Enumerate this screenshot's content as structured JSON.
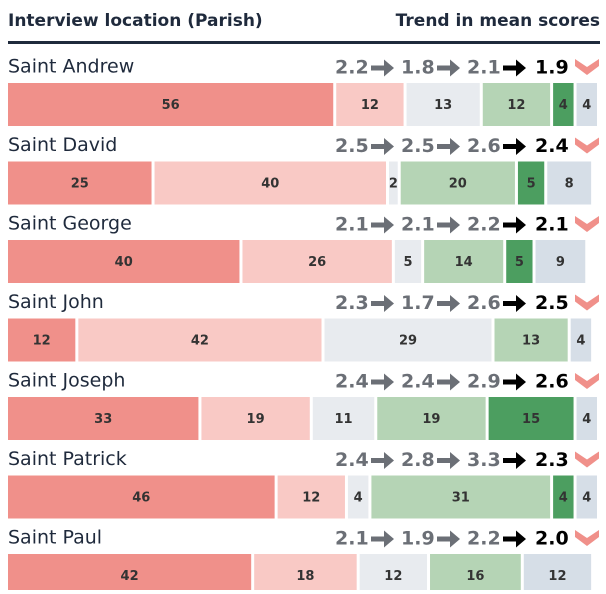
{
  "chart_data": {
    "type": "bar",
    "orientation": "horizontal",
    "stacked": true,
    "header_left": "Interview location (Parish)",
    "header_right": "Trend in mean scores",
    "categories": [
      "Saint Andrew",
      "Saint David",
      "Saint George",
      "Saint John",
      "Saint Joseph",
      "Saint Patrick",
      "Saint Paul"
    ],
    "xlim": [
      0,
      101
    ],
    "series": [
      {
        "color": "#f0908a",
        "values": [
          56,
          25,
          40,
          12,
          33,
          46,
          42
        ]
      },
      {
        "color": "#f9c9c5",
        "values": [
          12,
          40,
          26,
          42,
          19,
          12,
          18
        ]
      },
      {
        "color": "#e8ebef",
        "values": [
          13,
          2,
          5,
          29,
          11,
          4,
          12
        ]
      },
      {
        "color": "#b5d4b5",
        "values": [
          12,
          20,
          14,
          13,
          19,
          31,
          16
        ]
      },
      {
        "color": "#4c9e60",
        "values": [
          4,
          5,
          5,
          null,
          15,
          4,
          null
        ]
      },
      {
        "color": "#d6dee7",
        "values": [
          4,
          8,
          9,
          4,
          4,
          4,
          12
        ]
      }
    ],
    "trends": [
      [
        2.2,
        1.8,
        2.1,
        1.9
      ],
      [
        2.5,
        2.5,
        2.6,
        2.4
      ],
      [
        2.1,
        2.1,
        2.2,
        2.1
      ],
      [
        2.3,
        1.7,
        2.6,
        2.5
      ],
      [
        2.4,
        2.4,
        2.9,
        2.6
      ],
      [
        2.4,
        2.8,
        3.3,
        2.3
      ],
      [
        2.1,
        1.9,
        2.2,
        {
          "value": 2,
          "label": "2.0"
        }
      ]
    ]
  }
}
